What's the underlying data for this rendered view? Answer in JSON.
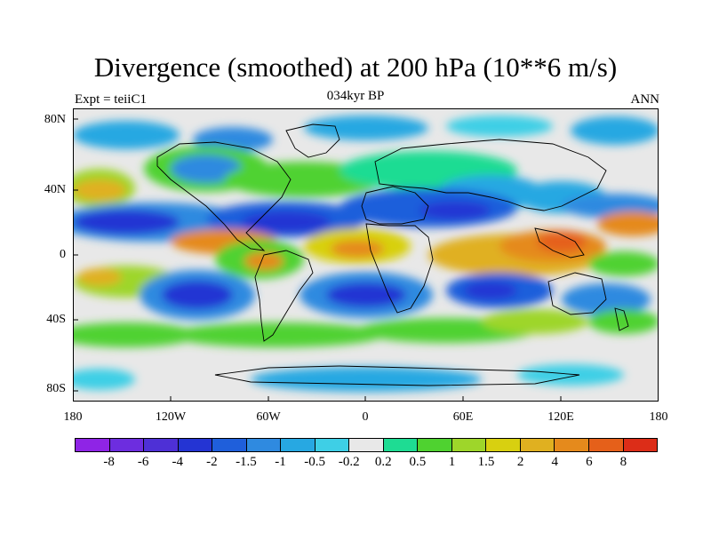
{
  "title": "Divergence (smoothed) at 200 hPa (10**6 m/s)",
  "subtitle_left": "Expt = teiiC1",
  "subtitle_center": "034kyr BP",
  "subtitle_right": "ANN",
  "lat_labels": [
    "80N",
    "40N",
    "0",
    "40S",
    "80S"
  ],
  "lon_labels": [
    "180",
    "120W",
    "60W",
    "0",
    "60E",
    "120E",
    "180"
  ],
  "colorbar": {
    "colors": [
      "#8f24e6",
      "#6d2ddf",
      "#4e30d6",
      "#2434d3",
      "#1f5fdb",
      "#2f8ae0",
      "#27a8e2",
      "#3ecfe6",
      "#e8e8e8",
      "#1edc93",
      "#4fd230",
      "#9ed62a",
      "#d8d010",
      "#e0b020",
      "#e58a1c",
      "#e5601a",
      "#dc2d18"
    ],
    "labels": [
      "-8",
      "-6",
      "-4",
      "-2",
      "-1.5",
      "-1",
      "-0.5",
      "-0.2",
      "0.2",
      "0.5",
      "1",
      "1.5",
      "2",
      "4",
      "6",
      "8"
    ]
  }
}
